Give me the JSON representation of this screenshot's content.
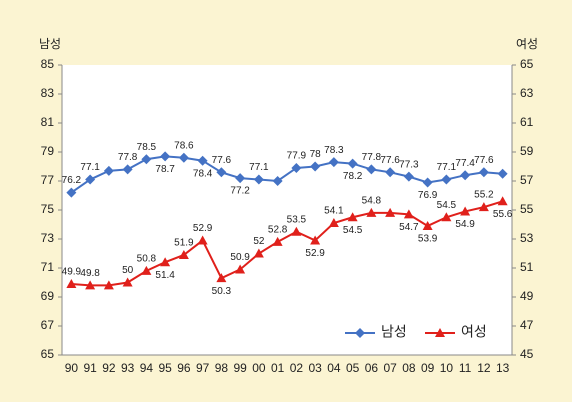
{
  "chart_data": {
    "type": "line",
    "ylabel": "남성",
    "y2label": "여성",
    "categories": [
      "90",
      "91",
      "92",
      "93",
      "94",
      "95",
      "96",
      "97",
      "98",
      "99",
      "00",
      "01",
      "02",
      "03",
      "04",
      "05",
      "06",
      "07",
      "08",
      "09",
      "10",
      "11",
      "12",
      "13"
    ],
    "series": [
      {
        "name": "남성",
        "color": "#4472c4",
        "marker": "diamond",
        "values": [
          76.2,
          77.1,
          77.7,
          77.8,
          78.5,
          78.7,
          78.6,
          78.4,
          77.6,
          77.2,
          77.1,
          77.0,
          77.9,
          78,
          78.3,
          78.2,
          77.8,
          77.6,
          77.3,
          76.9,
          77.1,
          77.4,
          77.6,
          77.5
        ],
        "value_labels": [
          "76.2",
          "77.1",
          null,
          "77.8",
          "78.5",
          "78.7",
          "78.6",
          "78.4",
          "77.6",
          "77.2",
          "77.1",
          null,
          "77.9",
          "78",
          "78.3",
          "78.2",
          "77.8",
          "77.6",
          "77.3",
          "76.9",
          "77.1",
          "77.4",
          "77.6",
          null
        ]
      },
      {
        "name": "여성",
        "color": "#e0201b",
        "marker": "triangle",
        "axis": "y2",
        "values": [
          49.9,
          49.8,
          49.8,
          50,
          50.8,
          51.4,
          51.9,
          52.9,
          50.3,
          50.9,
          52,
          52.8,
          53.5,
          52.9,
          54.1,
          54.5,
          54.8,
          54.8,
          54.7,
          53.9,
          54.5,
          54.9,
          55.2,
          55.6
        ],
        "value_labels": [
          "49.9",
          "49.8",
          null,
          "50",
          "50.8",
          "51.4",
          "51.9",
          "52.9",
          "50.3",
          "50.9",
          "52",
          "52.8",
          "53.5",
          "52.9",
          "54.1",
          "54.5",
          "54.8",
          null,
          "54.7",
          "53.9",
          "54.5",
          "54.9",
          "55.2",
          "55.6"
        ]
      }
    ],
    "ylim": [
      65,
      85
    ],
    "yticks": [
      65,
      67,
      69,
      71,
      73,
      75,
      77,
      79,
      81,
      83,
      85
    ],
    "y2lim": [
      45,
      65
    ],
    "y2ticks": [
      45,
      47,
      49,
      51,
      53,
      55,
      57,
      59,
      61,
      63,
      65
    ],
    "grid": false,
    "legend": "lower right"
  }
}
